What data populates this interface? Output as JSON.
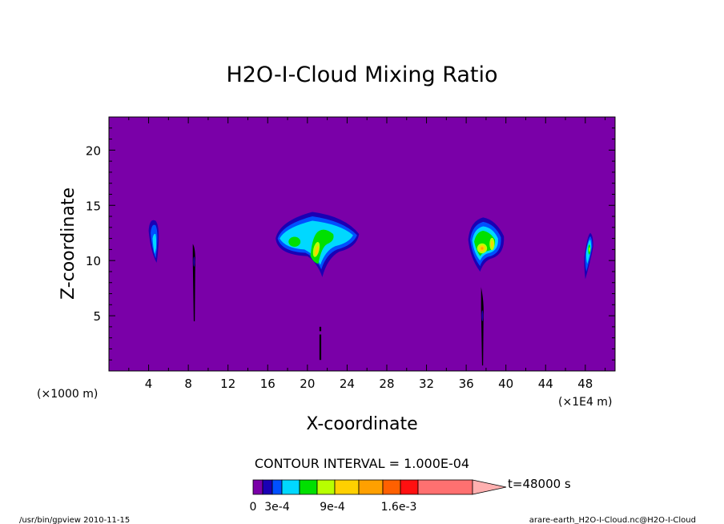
{
  "chart_data": {
    "type": "heatmap",
    "title": "H2O-I-Cloud Mixing Ratio",
    "xlabel": "X-coordinate",
    "ylabel": "Z-coordinate",
    "x_unit_label": "(×1000 m)",
    "x_unit_label2": "(×1E4 m)",
    "xlim": [
      0,
      51
    ],
    "ylim": [
      0,
      23
    ],
    "x_ticks": [
      4,
      8,
      12,
      16,
      20,
      24,
      28,
      32,
      36,
      40,
      44,
      48
    ],
    "y_ticks": [
      5,
      10,
      15,
      20
    ],
    "contour_interval_text": "CONTOUR INTERVAL = 1.000E-04",
    "time_label": "t=48000 s",
    "colorbar_labels": [
      "0",
      "3e-4",
      "9e-4",
      "1.6e-3"
    ],
    "colorbar_colors": [
      "#7a00a8",
      "#1a00b4",
      "#0050ff",
      "#00d8ff",
      "#00e000",
      "#b8ff00",
      "#ffd000",
      "#ffa000",
      "#ff6000",
      "#ff1010",
      "#ff7070",
      "#ffb0b0"
    ],
    "levels": [
      "0",
      "1e-4",
      "2e-4",
      "3e-4",
      "4e-4",
      "5e-4",
      "6e-4",
      "9e-4",
      "1.2e-3",
      "1.4e-3",
      "1.6e-3",
      "2e-3"
    ],
    "cloud_cells": [
      {
        "x": 4.6,
        "z_range": [
          9.8,
          13.8
        ],
        "max_level": "3e-4"
      },
      {
        "x": 8.6,
        "z_range": [
          4.5,
          11.5
        ],
        "max_level": "1e-4"
      },
      {
        "x": 20.5,
        "z_range": [
          8.5,
          14.4
        ],
        "max_level": "9e-4"
      },
      {
        "x": 21.3,
        "z_range": [
          1.0,
          4.0
        ],
        "max_level": "1e-4"
      },
      {
        "x": 37.8,
        "z_range": [
          9.0,
          13.9
        ],
        "max_level": "1.2e-3"
      },
      {
        "x": 37.6,
        "z_range": [
          0.5,
          7.6
        ],
        "max_level": "1e-4"
      },
      {
        "x": 48.3,
        "z_range": [
          8.3,
          12.5
        ],
        "max_level": "5e-4"
      }
    ]
  },
  "footer": {
    "left": "/usr/bin/gpview   2010-11-15",
    "right": "arare-earth_H2O-I-Cloud.nc@H2O-I-Cloud"
  }
}
